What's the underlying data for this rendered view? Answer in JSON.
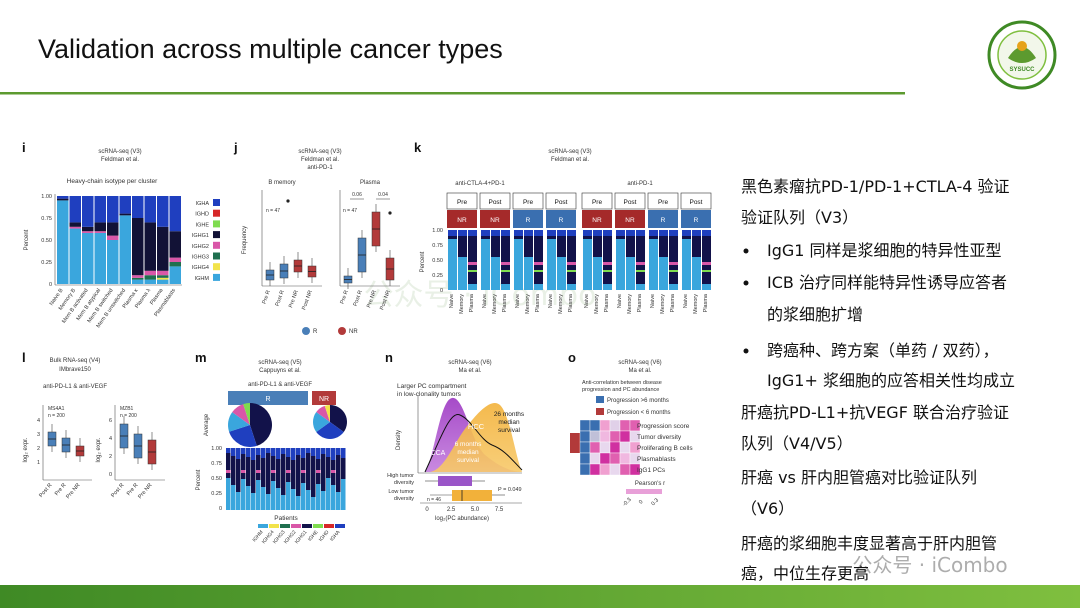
{
  "header": {
    "title": "Validation across multiple cancer types"
  },
  "logo": {
    "text": "SYSUCC"
  },
  "watermark": "公众号 · iCombo",
  "notes": [
    "黑色素瘤抗PD-1/PD-1+CTLA-4 验证",
    "验证队列（V3）",
    "IgG1 同样是浆细胞的特异性亚型",
    "ICB 治疗同样能特异性诱导应答者",
    "的浆细胞扩增",
    "跨癌种、跨方案（单药 / 双药），",
    "IgG1+ 浆细胞的应答相关性均成立",
    "肝癌抗PD-L1+抗VEGF 联合治疗验证",
    "队列（V4/V5）",
    "肝癌 vs 肝内胆管癌对比验证队列",
    "（V6）",
    "肝癌的浆细胞丰度显著高于肝内胆管",
    "癌，中位生存更高"
  ],
  "panels": {
    "i": {
      "label": "i",
      "texts": [
        "scRNA-seq (V3)",
        "Feldman et al.",
        "Heavy-chain isotype per cluster",
        "Percent",
        "1.00",
        "0.75",
        "0.50",
        "0.25",
        "0"
      ],
      "categories": [
        "Naive B",
        "Memory B",
        "Mem B activated",
        "Mem B atypical",
        "Mem B switched",
        "Mem B unswitched",
        "Plasma κ",
        "Plasma λ",
        "Plasma",
        "Plasmablasts"
      ],
      "legend": [
        {
          "name": "IGHA",
          "color": "#1f3fbf"
        },
        {
          "name": "IGHD",
          "color": "#d62728"
        },
        {
          "name": "IGHE",
          "color": "#7fdc4f"
        },
        {
          "name": "IGHG1",
          "color": "#121236"
        },
        {
          "name": "IGHG2",
          "color": "#d957a8"
        },
        {
          "name": "IGHG3",
          "color": "#1f6f4f"
        },
        {
          "name": "IGHG4",
          "color": "#f2e34a"
        },
        {
          "name": "IGHM",
          "color": "#3aa6dd"
        }
      ],
      "bars": [
        [
          0.03,
          0,
          0,
          0.02,
          0,
          0,
          0,
          0.95
        ],
        [
          0.3,
          0,
          0,
          0.05,
          0.02,
          0,
          0,
          0.63
        ],
        [
          0.35,
          0,
          0,
          0.05,
          0.02,
          0,
          0,
          0.58
        ],
        [
          0.3,
          0,
          0,
          0.1,
          0.02,
          0,
          0,
          0.58
        ],
        [
          0.3,
          0,
          0,
          0.15,
          0.05,
          0,
          0,
          0.5
        ],
        [
          0.2,
          0,
          0,
          0.02,
          0,
          0,
          0,
          0.78
        ],
        [
          0.25,
          0,
          0,
          0.65,
          0.03,
          0.02,
          0,
          0.05
        ],
        [
          0.3,
          0,
          0,
          0.55,
          0.05,
          0.05,
          0,
          0.05
        ],
        [
          0.35,
          0,
          0,
          0.5,
          0.05,
          0.03,
          0.02,
          0.05
        ],
        [
          0.4,
          0,
          0,
          0.3,
          0.05,
          0.05,
          0,
          0.2
        ]
      ]
    },
    "j": {
      "label": "j",
      "texts": [
        "scRNA-seq (V3)",
        "Feldman et al.",
        "anti-PD-1",
        "B memory",
        "Plasma",
        "Frequency",
        "n = 47",
        "n = 47",
        "0.06",
        "0.04",
        "R",
        "NR"
      ],
      "categories": [
        "Pre R",
        "Post R",
        "Pre NR",
        "Post NR"
      ]
    },
    "k": {
      "label": "k",
      "texts": [
        "scRNA-seq (V3)",
        "Feldman et al.",
        "anti-CTLA-4+PD-1",
        "anti-PD-1",
        "Pre",
        "Post",
        "NR",
        "R",
        "Percent",
        "1.00",
        "0.75",
        "0.50",
        "0.25",
        "0"
      ],
      "categories": [
        "Naive",
        "Memory",
        "Plasma"
      ]
    },
    "l": {
      "label": "l",
      "texts": [
        "Bulk RNA-seq (V4)",
        "IMbrave150",
        "anti-PD-L1 & anti-VEGF",
        "MS4A1",
        "MZB1",
        "n = 200",
        "log₂ expr.",
        "4",
        "3",
        "2",
        "1",
        "6",
        "4",
        "2",
        "0"
      ],
      "categories": [
        "Post R",
        "Pre R",
        "Pre NR"
      ]
    },
    "m": {
      "label": "m",
      "texts": [
        "scRNA-seq (V5)",
        "Cappuyns et al.",
        "anti-PD-L1 & anti-VEGF",
        "R",
        "NR",
        "Average",
        "Percent",
        "1.00",
        "0.75",
        "0.50",
        "0.25",
        "0",
        "Patients"
      ],
      "categories": [
        "IGHM",
        "IGHG4",
        "IGHG3",
        "IGHG2",
        "IGHG1",
        "IGHE",
        "IGHD",
        "IGHA"
      ]
    },
    "n": {
      "label": "n",
      "texts": [
        "scRNA-seq (V6)",
        "Ma et al.",
        "Larger PC compartment",
        "in low-clonality tumors",
        "Density",
        "HCC",
        "ICCA",
        "26 months",
        "median",
        "survival",
        "6 months",
        "median",
        "survival",
        "High tumor",
        "diversity",
        "Low tumor",
        "diversity",
        "P = 0.049",
        "n = 46",
        "log₂(PC abundance)",
        "0",
        "2.5",
        "5.0",
        "7.5"
      ]
    },
    "o": {
      "label": "o",
      "texts": [
        "scRNA-seq (V6)",
        "Ma et al.",
        "Anti-correlation between disease",
        "progression and PC abundance",
        "Progression >6 months",
        "Progression < 6 months",
        "Progression score",
        "Tumor diversity",
        "Proliferating B cells",
        "Plasmablasts",
        "IgG1 PCs",
        "Pearson's r",
        "-0.3",
        "0",
        "0.3"
      ]
    }
  }
}
